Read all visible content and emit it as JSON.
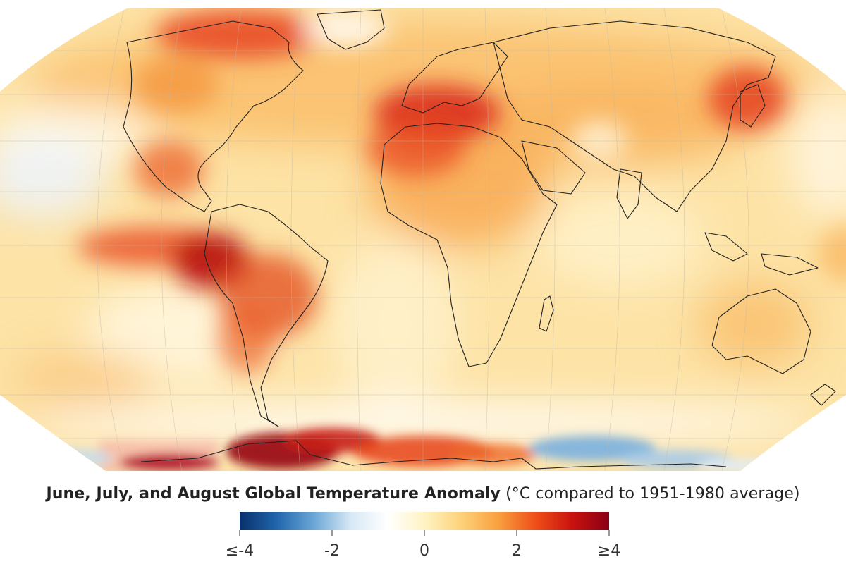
{
  "caption": {
    "title": "June, July, and August Global Temperature Anomaly",
    "units": "(°C compared to 1951-1980 average)"
  },
  "legend": {
    "ticks": [
      {
        "value": -4,
        "label": "≤-4"
      },
      {
        "value": -2,
        "label": "-2"
      },
      {
        "value": 0,
        "label": "0"
      },
      {
        "value": 2,
        "label": "2"
      },
      {
        "value": 4,
        "label": "≥4"
      }
    ],
    "range": [
      -4,
      4
    ],
    "colors": [
      "#08306b",
      "#2166ac",
      "#6aa6d6",
      "#d6e8f5",
      "#ffffff",
      "#fff3c4",
      "#fdd27a",
      "#f9a03f",
      "#ef4f1a",
      "#c9120f",
      "#8a0015"
    ]
  },
  "map": {
    "projection": "Robinson",
    "hotspots": [
      {
        "name": "western-south-america",
        "level": 4
      },
      {
        "name": "antarctica-weddell-sector",
        "level": 4
      },
      {
        "name": "mediterranean-north-africa",
        "level": 3.5
      },
      {
        "name": "canadian-arctic-greenland",
        "level": 3
      },
      {
        "name": "japan",
        "level": 2.5
      },
      {
        "name": "east-antarctica",
        "level": -2
      }
    ]
  }
}
